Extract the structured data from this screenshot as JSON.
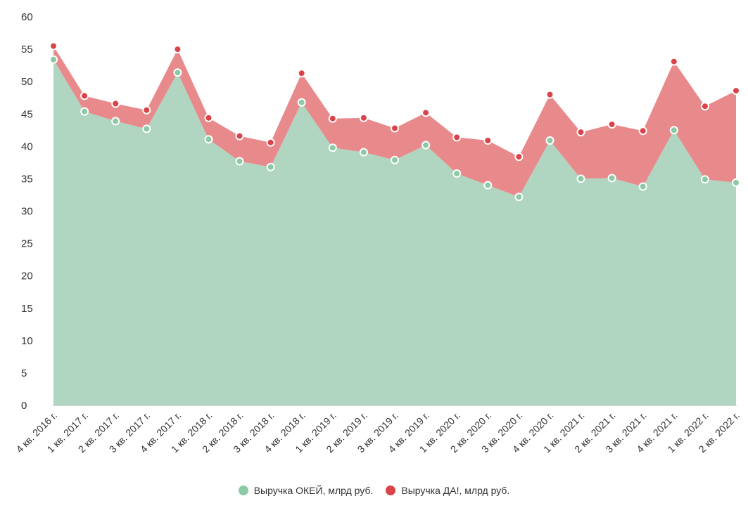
{
  "chart_data": {
    "type": "area",
    "stacked": true,
    "categories": [
      "4 кв. 2016 г.",
      "1 кв. 2017 г.",
      "2 кв. 2017 г.",
      "3 кв. 2017 г.",
      "4 кв. 2017 г.",
      "1 кв. 2018 г.",
      "2 кв. 2018 г.",
      "3 кв. 2018 г.",
      "4 кв. 2018 г.",
      "1 кв. 2019 г.",
      "2 кв. 2019 г.",
      "3 кв. 2019 г.",
      "4 кв. 2019 г.",
      "1 кв. 2020 г.",
      "2 кв. 2020 г.",
      "3 кв. 2020 г.",
      "4 кв. 2020 г.",
      "1 кв. 2021 г.",
      "2 кв. 2021 г.",
      "3 кв. 2021 г.",
      "4 кв. 2021 г.",
      "1 кв. 2022 г.",
      "2 кв. 2022 г."
    ],
    "series": [
      {
        "name": "Выручка ОКЕЙ, млрд руб.",
        "color": "#8ccaa6",
        "fill": "#b0d5c1",
        "values": [
          53.4,
          45.4,
          43.9,
          42.7,
          51.4,
          41.1,
          37.7,
          36.8,
          46.8,
          39.8,
          39.1,
          37.9,
          40.2,
          35.8,
          34.0,
          32.2,
          40.9,
          35.0,
          35.1,
          33.8,
          42.5,
          34.9,
          34.4
        ]
      },
      {
        "name": "Выручка ДА!, млрд руб.",
        "color": "#d9434a",
        "fill": "#e88a8c",
        "values": [
          2.1,
          2.4,
          2.7,
          2.9,
          3.6,
          3.3,
          3.9,
          3.8,
          4.5,
          4.5,
          5.3,
          4.9,
          5.0,
          5.6,
          6.9,
          6.2,
          7.1,
          7.2,
          8.3,
          8.6,
          10.6,
          11.3,
          14.2
        ]
      }
    ],
    "yticks": [
      0,
      5,
      10,
      15,
      20,
      25,
      30,
      35,
      40,
      45,
      50,
      55,
      60
    ],
    "ylim": [
      0,
      60
    ],
    "title": "",
    "xlabel": "",
    "ylabel": "",
    "grid": false,
    "legend_position": "bottom-center"
  }
}
